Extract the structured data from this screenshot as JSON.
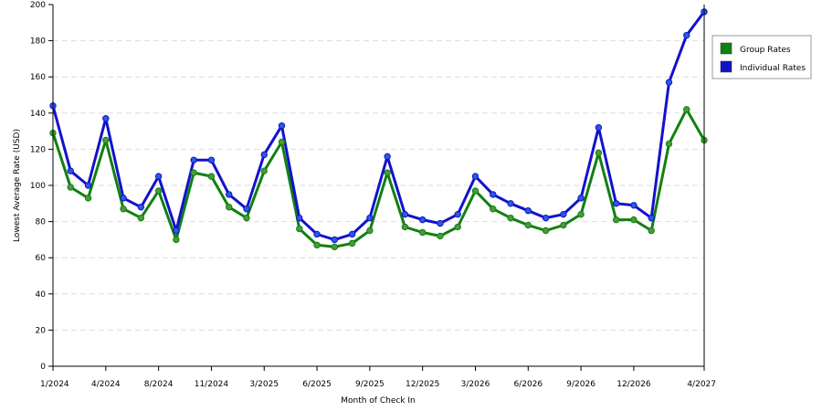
{
  "chart_data": {
    "type": "line",
    "title": "",
    "xlabel": "Month of Check In",
    "ylabel": "Lowest Average Rate (USD)",
    "ylim": [
      0,
      200
    ],
    "yticks": [
      0,
      20,
      40,
      60,
      80,
      100,
      120,
      140,
      160,
      180,
      200
    ],
    "grid": true,
    "legend_position": "top-right",
    "x_tick_labels": [
      {
        "index": 0,
        "label": "1/2024"
      },
      {
        "index": 3,
        "label": "4/2024"
      },
      {
        "index": 6,
        "label": "8/2024"
      },
      {
        "index": 9,
        "label": "11/2024"
      },
      {
        "index": 12,
        "label": "3/2025"
      },
      {
        "index": 15,
        "label": "6/2025"
      },
      {
        "index": 18,
        "label": "9/2025"
      },
      {
        "index": 21,
        "label": "12/2025"
      },
      {
        "index": 24,
        "label": "3/2026"
      },
      {
        "index": 27,
        "label": "6/2026"
      },
      {
        "index": 30,
        "label": "9/2026"
      },
      {
        "index": 33,
        "label": "12/2026"
      },
      {
        "index": 37,
        "label": "4/2027"
      }
    ],
    "point_count": 38,
    "series": [
      {
        "name": "Group Rates",
        "color": "#118011",
        "marker_color": "#4a9a3a",
        "values": [
          129,
          99,
          93,
          125,
          87,
          82,
          97,
          70,
          107,
          105,
          88,
          82,
          108,
          124,
          76,
          67,
          66,
          68,
          75,
          107,
          77,
          74,
          72,
          77,
          97,
          87,
          82,
          78,
          75,
          78,
          84,
          118,
          81,
          81,
          75,
          123,
          142,
          125
        ]
      },
      {
        "name": "Individual Rates",
        "color": "#1212cc",
        "marker_color": "#2a5ae0",
        "values": [
          144,
          108,
          100,
          137,
          93,
          88,
          105,
          75,
          114,
          114,
          95,
          87,
          117,
          133,
          82,
          73,
          70,
          73,
          82,
          116,
          84,
          81,
          79,
          84,
          105,
          95,
          90,
          86,
          82,
          84,
          93,
          132,
          90,
          89,
          82,
          157,
          183,
          196
        ]
      }
    ]
  }
}
